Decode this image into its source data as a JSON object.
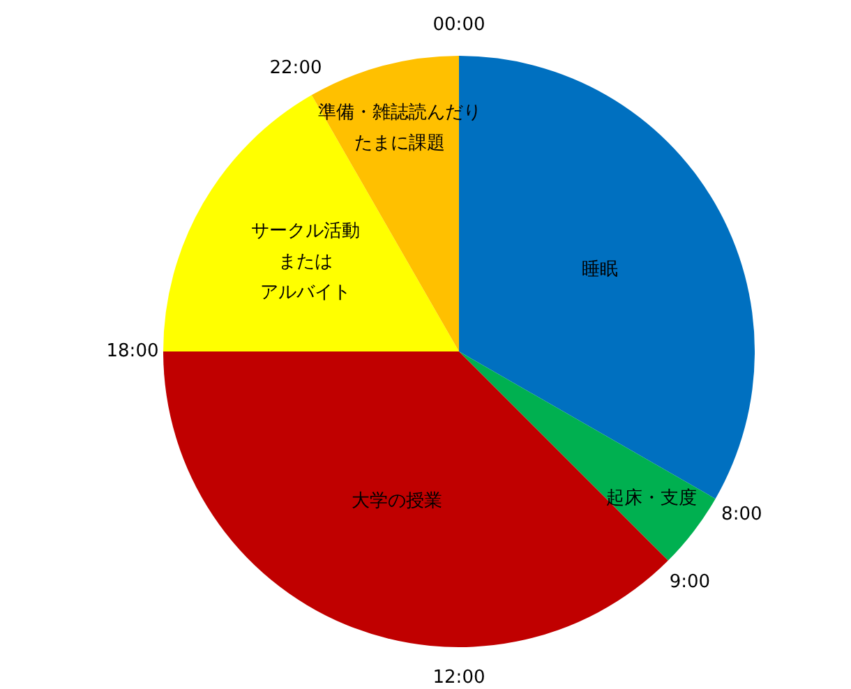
{
  "chart_data": {
    "type": "pie",
    "categories": [
      "睡眠",
      "起床・支度",
      "大学の授業",
      "サークル活動またはアルバイト",
      "準備・雑誌読んだりたまに課題"
    ],
    "values": [
      33.3,
      4.2,
      37.5,
      16.7,
      8.3
    ],
    "colors": [
      "#0070c0",
      "#00b050",
      "#c00000",
      "#ffff00",
      "#ffc000"
    ],
    "annotations": [
      "00:00",
      "8:00",
      "9:00",
      "12:00",
      "18:00",
      "22:00"
    ],
    "legend": false
  }
}
